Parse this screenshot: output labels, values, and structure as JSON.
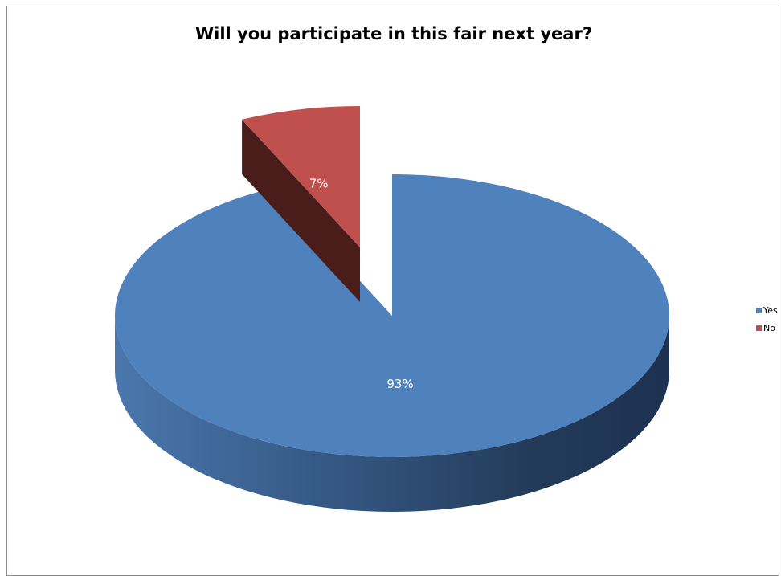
{
  "chart_data": {
    "type": "pie",
    "title": "Will you participate in this fair next year?",
    "categories": [
      "Yes",
      "No"
    ],
    "values": [
      93,
      7
    ],
    "labels": [
      "93%",
      "7%"
    ],
    "colors": {
      "Yes": "#4F81BD",
      "No": "#C0504D"
    },
    "legend_position": "right",
    "exploded": "No",
    "three_d": true
  }
}
